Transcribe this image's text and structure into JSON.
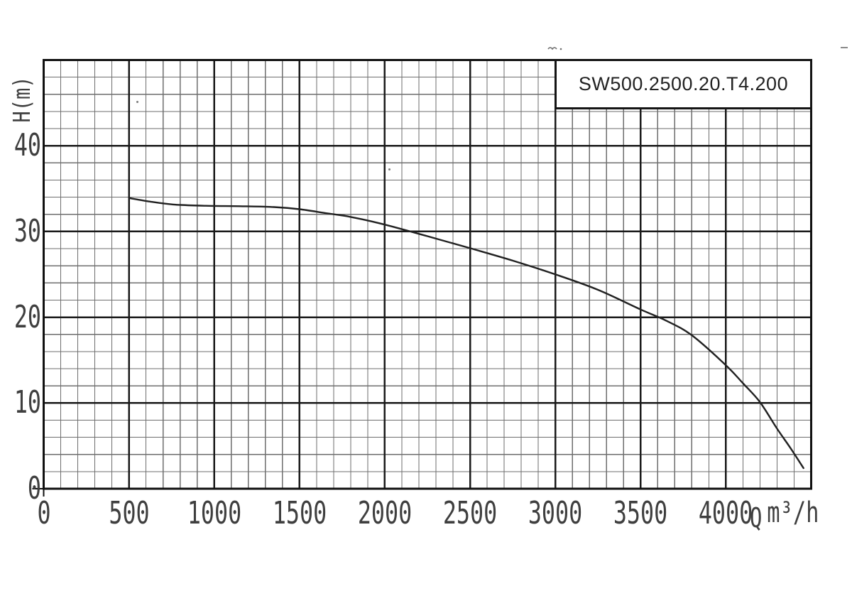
{
  "axes": {
    "y_title": "H(m)",
    "flow_symbol": "Q",
    "flow_unit": "m³/h"
  },
  "model_box": {
    "label": "SW500.2500.20.T4.200"
  },
  "colors": {
    "background": "#ffffff",
    "major_grid": "#1a1a1a",
    "minor_grid": "#6e6e6e",
    "border": "#111111",
    "curve": "#212121",
    "text": "#3f3f3f"
  },
  "chart_data": {
    "type": "line",
    "title": "SW500.2500.20.T4.200",
    "xlabel": "Q m³/h",
    "ylabel": "H(m)",
    "xlim": [
      0,
      4500
    ],
    "ylim": [
      0,
      50
    ],
    "x_major_step": 500,
    "x_minor_step": 100,
    "y_major_step": 10,
    "y_minor_step": 2,
    "x_ticks": [
      0,
      500,
      1000,
      1500,
      2000,
      2500,
      3000,
      3500,
      4000
    ],
    "y_ticks": [
      0,
      10,
      20,
      30,
      40
    ],
    "grid": true,
    "legend_position": "none",
    "series": [
      {
        "name": "SW500.2500.20.T4.200 head-flow curve",
        "points": [
          [
            500,
            33.9
          ],
          [
            620,
            33.5
          ],
          [
            760,
            33.15
          ],
          [
            950,
            33.0
          ],
          [
            1150,
            32.95
          ],
          [
            1350,
            32.85
          ],
          [
            1500,
            32.6
          ],
          [
            1650,
            32.15
          ],
          [
            1800,
            31.7
          ],
          [
            2000,
            30.8
          ],
          [
            2250,
            29.45
          ],
          [
            2500,
            28.05
          ],
          [
            2750,
            26.6
          ],
          [
            3000,
            25.0
          ],
          [
            3250,
            23.2
          ],
          [
            3500,
            20.9
          ],
          [
            3650,
            19.6
          ],
          [
            3800,
            17.9
          ],
          [
            4000,
            14.4
          ],
          [
            4100,
            12.3
          ],
          [
            4200,
            10.1
          ],
          [
            4300,
            7.0
          ],
          [
            4380,
            4.7
          ],
          [
            4455,
            2.4
          ]
        ]
      }
    ]
  }
}
